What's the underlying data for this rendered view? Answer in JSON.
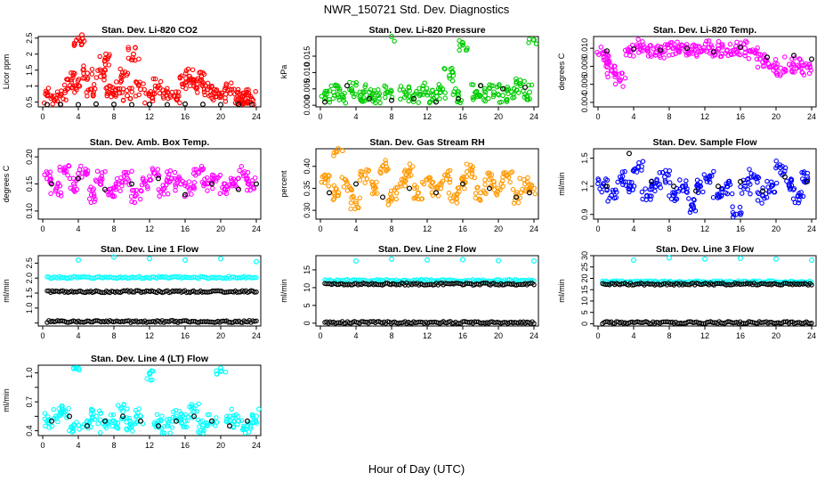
{
  "figure": {
    "title": "NWR_150721  Std. Dev. Diagnostics",
    "xlabel": "Hour of Day (UTC)"
  },
  "chart_data": [
    {
      "type": "scatter",
      "title": "Stan. Dev. Li-820 CO2",
      "ylabel": "Licor ppm",
      "xticks": [
        0,
        4,
        8,
        12,
        16,
        20,
        24
      ],
      "yticks": [
        0.5,
        1.0,
        1.5,
        2.0,
        2.5
      ],
      "xlim": [
        -0.5,
        24.5
      ],
      "ylim": [
        0.35,
        2.55
      ],
      "color": "#ff0000",
      "series": [
        {
          "x": [
            0.5,
            1.5,
            2.5,
            3.2,
            3.6,
            4.0,
            4.4,
            5.0,
            5.5,
            6.5,
            7.0,
            7.5,
            8.2,
            9.0,
            9.5,
            10.2,
            11.0,
            12.0,
            13.0,
            14.0,
            15.0,
            16.0,
            16.5,
            17.0,
            17.8,
            18.5,
            19.2,
            20.0,
            21.0,
            22.0,
            22.5,
            23.0,
            23.5
          ],
          "y": [
            0.7,
            0.6,
            0.8,
            1.2,
            1.0,
            2.5,
            2.6,
            1.4,
            0.9,
            1.3,
            1.8,
            0.8,
            0.9,
            1.3,
            0.7,
            2.0,
            0.9,
            0.7,
            1.0,
            0.8,
            0.6,
            1.1,
            1.3,
            1.0,
            1.2,
            0.9,
            0.8,
            0.7,
            0.9,
            0.6,
            0.7,
            0.5,
            0.6
          ]
        },
        {
          "x": [
            0.5,
            2.0,
            4.0,
            6.0,
            8.0,
            10.0,
            12.0,
            14.0,
            16.0,
            18.0,
            20.0,
            22.0,
            23.5
          ],
          "y": [
            0.42,
            0.43,
            0.42,
            0.44,
            0.43,
            0.42,
            0.43,
            0.42,
            0.44,
            0.43,
            0.42,
            0.43,
            0.42
          ]
        }
      ]
    },
    {
      "type": "scatter",
      "title": "Stan. Dev. Li-820 Pressure",
      "ylabel": "kPa",
      "xticks": [
        0,
        4,
        8,
        12,
        16,
        20,
        24
      ],
      "yticks": [
        0.0,
        0.005,
        0.01,
        0.015
      ],
      "ytick_labels": [
        "0.000",
        "0.005",
        "0.010",
        "0.015"
      ],
      "xlim": [
        -0.5,
        24.5
      ],
      "ylim": [
        -0.0005,
        0.021
      ],
      "color": "#00cc00",
      "series": [
        {
          "x": [
            0.5,
            1.5,
            2.5,
            3.5,
            4.5,
            5.5,
            6.5,
            7.5,
            8.0,
            9.5,
            10.5,
            11.5,
            12.5,
            13.5,
            14.5,
            15.5,
            16.0,
            17.5,
            18.5,
            19.5,
            20.5,
            21.5,
            22.5,
            23.5,
            24.0
          ],
          "y": [
            0.002,
            0.004,
            0.003,
            0.005,
            0.003,
            0.004,
            0.003,
            0.004,
            0.021,
            0.004,
            0.003,
            0.005,
            0.003,
            0.004,
            0.009,
            0.003,
            0.019,
            0.004,
            0.003,
            0.004,
            0.003,
            0.004,
            0.006,
            0.004,
            0.02
          ]
        },
        {
          "x": [
            0.5,
            3.0,
            5.5,
            8.0,
            10.5,
            13.0,
            15.5,
            18.0,
            20.5,
            23.0
          ],
          "y": [
            0.001,
            0.006,
            0.002,
            0.0015,
            0.002,
            0.001,
            0.002,
            0.006,
            0.005,
            0.0055
          ]
        }
      ]
    },
    {
      "type": "scatter",
      "title": "Stan. Dev. Li-820 Temp.",
      "ylabel": "degrees C",
      "xticks": [
        0,
        4,
        8,
        12,
        16,
        20,
        24
      ],
      "yticks": [
        0.004,
        0.006,
        0.008,
        0.01
      ],
      "ytick_labels": [
        "0.004",
        "0.006",
        "0.008",
        "0.010"
      ],
      "xlim": [
        -0.5,
        24.5
      ],
      "ylim": [
        0.0035,
        0.0113
      ],
      "color": "#ff00ff",
      "series": [
        {
          "x": [
            0.5,
            1.0,
            1.5,
            2.5,
            3.5,
            4.5,
            5.5,
            6.5,
            7.5,
            8.5,
            9.5,
            10.5,
            11.5,
            12.5,
            13.5,
            14.5,
            15.5,
            16.5,
            17.5,
            18.5,
            19.5,
            20.5,
            21.5,
            22.5,
            23.5
          ],
          "y": [
            0.0095,
            0.0085,
            0.0075,
            0.0065,
            0.0098,
            0.0102,
            0.0099,
            0.0095,
            0.0097,
            0.01,
            0.0103,
            0.0098,
            0.0096,
            0.0101,
            0.0099,
            0.0097,
            0.0102,
            0.01,
            0.0096,
            0.0085,
            0.008,
            0.0078,
            0.0082,
            0.0081,
            0.0079
          ]
        },
        {
          "x": [
            1.0,
            4.0,
            7.0,
            10.0,
            13.0,
            16.0,
            19.0,
            22.0,
            24.0
          ],
          "y": [
            0.0097,
            0.0099,
            0.0098,
            0.01,
            0.0096,
            0.0101,
            0.009,
            0.0092,
            0.0088
          ]
        }
      ]
    },
    {
      "type": "scatter",
      "title": "Stan. Dev. Amb. Box Temp.",
      "ylabel": "degrees C",
      "xticks": [
        0,
        4,
        8,
        12,
        16,
        20,
        24
      ],
      "yticks": [
        0.1,
        0.15,
        0.2
      ],
      "ytick_labels": [
        "0.10",
        "0.15",
        "0.20"
      ],
      "xlim": [
        -0.5,
        24.5
      ],
      "ylim": [
        0.085,
        0.215
      ],
      "color": "#ff00ff",
      "series": [
        {
          "x": [
            0.5,
            1.5,
            2.5,
            3.5,
            4.5,
            5.5,
            6.5,
            7.5,
            8.5,
            9.5,
            10.5,
            11.5,
            12.5,
            13.5,
            14.5,
            15.5,
            16.5,
            17.5,
            18.5,
            19.5,
            20.5,
            21.5,
            22.5,
            23.5
          ],
          "y": [
            0.16,
            0.14,
            0.18,
            0.15,
            0.17,
            0.13,
            0.16,
            0.14,
            0.15,
            0.16,
            0.13,
            0.15,
            0.17,
            0.14,
            0.16,
            0.15,
            0.14,
            0.17,
            0.15,
            0.16,
            0.14,
            0.15,
            0.17,
            0.15
          ]
        },
        {
          "x": [
            1.0,
            4.0,
            7.0,
            10.0,
            13.0,
            16.0,
            19.0,
            22.0,
            24.0
          ],
          "y": [
            0.15,
            0.16,
            0.14,
            0.15,
            0.16,
            0.13,
            0.15,
            0.14,
            0.15
          ]
        }
      ]
    },
    {
      "type": "scatter",
      "title": "Stan. Dev. Gas Stream RH",
      "ylabel": "percent",
      "xticks": [
        0,
        4,
        8,
        12,
        16,
        20,
        24
      ],
      "yticks": [
        0.3,
        0.35,
        0.4
      ],
      "ytick_labels": [
        "0.30",
        "0.35",
        "0.40"
      ],
      "xlim": [
        -0.5,
        24.5
      ],
      "ylim": [
        0.28,
        0.44
      ],
      "color": "#ff9900",
      "series": [
        {
          "x": [
            0.5,
            1.5,
            2.0,
            3.0,
            4.0,
            5.0,
            6.0,
            7.0,
            8.0,
            9.0,
            10.0,
            11.0,
            12.0,
            13.0,
            14.0,
            15.0,
            16.0,
            17.0,
            18.0,
            19.0,
            20.0,
            21.0,
            22.0,
            23.0,
            24.0
          ],
          "y": [
            0.38,
            0.34,
            0.44,
            0.36,
            0.32,
            0.38,
            0.35,
            0.4,
            0.33,
            0.36,
            0.39,
            0.34,
            0.37,
            0.35,
            0.38,
            0.33,
            0.36,
            0.39,
            0.34,
            0.37,
            0.35,
            0.38,
            0.33,
            0.36,
            0.35
          ]
        },
        {
          "x": [
            1.0,
            4.0,
            7.0,
            10.0,
            13.0,
            16.0,
            19.0,
            22.0,
            23.5
          ],
          "y": [
            0.34,
            0.36,
            0.33,
            0.35,
            0.34,
            0.36,
            0.35,
            0.33,
            0.34
          ]
        }
      ]
    },
    {
      "type": "scatter",
      "title": "Stan. Dev. Sample Flow",
      "ylabel": "ml/min",
      "xticks": [
        0,
        4,
        8,
        12,
        16,
        20,
        24
      ],
      "yticks": [
        0.9,
        1.2,
        1.5
      ],
      "xlim": [
        -0.5,
        24.5
      ],
      "ylim": [
        0.85,
        1.6
      ],
      "color": "#0000ff",
      "series": [
        {
          "x": [
            0.5,
            1.5,
            2.5,
            3.5,
            4.5,
            5.5,
            6.5,
            7.5,
            8.5,
            9.5,
            10.5,
            11.5,
            12.5,
            13.5,
            14.5,
            15.5,
            16.5,
            17.5,
            18.5,
            19.5,
            20.5,
            21.5,
            22.5,
            23.5
          ],
          "y": [
            1.2,
            1.1,
            1.3,
            1.2,
            1.4,
            1.1,
            1.2,
            1.3,
            1.1,
            1.2,
            1.0,
            1.2,
            1.3,
            1.1,
            1.2,
            0.9,
            1.2,
            1.3,
            1.1,
            1.2,
            1.4,
            1.2,
            1.1,
            1.3
          ]
        },
        {
          "x": [
            1.0,
            3.5,
            6.0,
            8.5,
            11.0,
            13.5,
            16.0,
            18.5,
            21.0,
            23.5
          ],
          "y": [
            1.2,
            1.55,
            1.25,
            1.2,
            1.15,
            1.2,
            1.25,
            1.15,
            1.3,
            1.25
          ]
        }
      ]
    },
    {
      "type": "scatter",
      "title": "Stan. Dev. Line 1 Flow",
      "ylabel": "ml/min",
      "xticks": [
        0,
        4,
        8,
        12,
        16,
        20,
        24
      ],
      "yticks": [
        0.5,
        1.0,
        1.5,
        2.0,
        2.5
      ],
      "ytick_labels": [
        "",
        "1.0",
        "1.5",
        "2.0",
        "2.5"
      ],
      "xlim": [
        -0.5,
        24.5
      ],
      "ylim": [
        0.4,
        2.75
      ],
      "color": "#00ffff",
      "series": [
        {
          "x": [
            4.0,
            8.0,
            12.0,
            16.0,
            20.0,
            24.0
          ],
          "y": [
            2.6,
            2.7,
            2.65,
            2.6,
            2.65,
            2.55
          ]
        },
        {
          "x": [
            0.5,
            24.0
          ],
          "y": [
            2.02,
            2.02
          ]
        },
        {
          "x": [
            0.5,
            24.0
          ],
          "y": [
            1.55,
            1.55
          ]
        },
        {
          "x": [
            0.5,
            24.0
          ],
          "y": [
            0.55,
            0.55
          ]
        }
      ]
    },
    {
      "type": "scatter",
      "title": "Stan. Dev. Line 2 Flow",
      "ylabel": "ml/min",
      "xticks": [
        0,
        4,
        8,
        12,
        16,
        20,
        24
      ],
      "yticks": [
        0,
        5,
        10,
        15
      ],
      "xlim": [
        -0.5,
        24.5
      ],
      "ylim": [
        -0.8,
        19
      ],
      "color": "#00ffff",
      "series": [
        {
          "x": [
            4.0,
            8.0,
            12.0,
            16.0,
            20.0,
            24.0
          ],
          "y": [
            17.5,
            18,
            17.8,
            17.9,
            17.6,
            17.5
          ]
        },
        {
          "x": [
            0.5,
            24.0
          ],
          "y": [
            12,
            12
          ]
        },
        {
          "x": [
            0.5,
            24.0
          ],
          "y": [
            11,
            11
          ]
        },
        {
          "x": [
            0.5,
            24.0
          ],
          "y": [
            0.2,
            0.2
          ]
        }
      ]
    },
    {
      "type": "scatter",
      "title": "Stan. Dev. Line 3 Flow",
      "ylabel": "ml/min",
      "xticks": [
        0,
        4,
        8,
        12,
        16,
        20,
        24
      ],
      "yticks": [
        0,
        5,
        10,
        15,
        20,
        25,
        30
      ],
      "xlim": [
        -0.5,
        24.5
      ],
      "ylim": [
        -1,
        30
      ],
      "color": "#00ffff",
      "series": [
        {
          "x": [
            4.0,
            8.0,
            12.0,
            16.0,
            20.0,
            24.0
          ],
          "y": [
            28,
            29,
            28.5,
            28.8,
            28.5,
            28
          ]
        },
        {
          "x": [
            0.5,
            24.0
          ],
          "y": [
            18.5,
            18.5
          ]
        },
        {
          "x": [
            0.5,
            24.0
          ],
          "y": [
            17.5,
            17.5
          ]
        },
        {
          "x": [
            0.5,
            24.0
          ],
          "y": [
            0.5,
            0.5
          ]
        }
      ]
    },
    {
      "type": "scatter",
      "title": "Stan. Dev. Line 4 (LT) Flow",
      "ylabel": "ml/min",
      "xticks": [
        0,
        4,
        8,
        12,
        16,
        20,
        24
      ],
      "yticks": [
        0.4,
        0.55,
        0.7,
        0.85,
        1.0
      ],
      "ytick_labels": [
        "0.4",
        "",
        "0.7",
        "",
        "1.0"
      ],
      "xlim": [
        -0.5,
        24.5
      ],
      "ylim": [
        0.35,
        1.08
      ],
      "color": "#00ffff",
      "series": [
        {
          "x": [
            0.5,
            1.5,
            2.5,
            3.5,
            4.0,
            5.0,
            6.0,
            7.0,
            8.0,
            9.0,
            10.0,
            11.0,
            12.0,
            13.0,
            14.0,
            15.0,
            16.0,
            17.0,
            18.0,
            19.0,
            20.0,
            21.0,
            22.0,
            23.0,
            24.0
          ],
          "y": [
            0.5,
            0.55,
            0.6,
            0.45,
            1.05,
            0.5,
            0.55,
            0.45,
            0.5,
            0.6,
            0.45,
            0.55,
            1.0,
            0.5,
            0.45,
            0.55,
            0.5,
            0.6,
            0.45,
            0.5,
            1.05,
            0.55,
            0.5,
            0.45,
            0.55
          ]
        },
        {
          "x": [
            1.0,
            3.0,
            5.0,
            7.0,
            9.0,
            11.0,
            13.0,
            15.0,
            17.0,
            19.0,
            21.0,
            23.0
          ],
          "y": [
            0.5,
            0.55,
            0.45,
            0.5,
            0.55,
            0.5,
            0.45,
            0.5,
            0.55,
            0.5,
            0.45,
            0.5
          ]
        }
      ]
    }
  ]
}
